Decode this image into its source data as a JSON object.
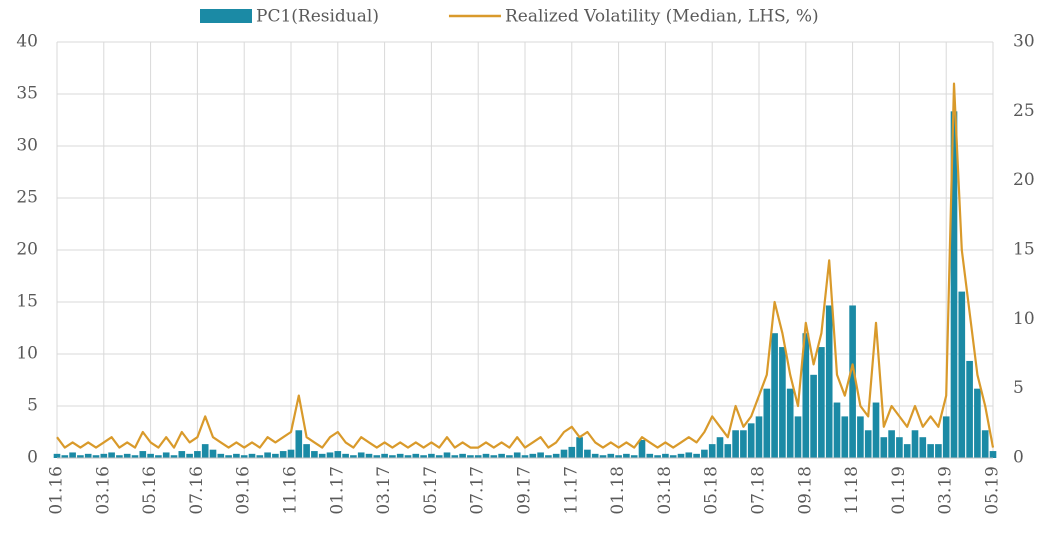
{
  "chart_data": {
    "type": "bar-line",
    "categories": [
      "01.16",
      null,
      null,
      null,
      null,
      null,
      "03.16",
      null,
      null,
      null,
      null,
      null,
      "05.16",
      null,
      null,
      null,
      null,
      null,
      "07.16",
      null,
      null,
      null,
      null,
      null,
      "09.16",
      null,
      null,
      null,
      null,
      null,
      "11.16",
      null,
      null,
      null,
      null,
      null,
      "01.17",
      null,
      null,
      null,
      null,
      null,
      "03.17",
      null,
      null,
      null,
      null,
      null,
      "05.17",
      null,
      null,
      null,
      null,
      null,
      "07.17",
      null,
      null,
      null,
      null,
      null,
      "09.17",
      null,
      null,
      null,
      null,
      null,
      "11.17",
      null,
      null,
      null,
      null,
      null,
      "01.18",
      null,
      null,
      null,
      null,
      null,
      "03.18",
      null,
      null,
      null,
      null,
      null,
      "05.18",
      null,
      null,
      null,
      null,
      null,
      "07.18",
      null,
      null,
      null,
      null,
      null,
      "09.18",
      null,
      null,
      null,
      null,
      null,
      "11.18",
      null,
      null,
      null,
      null,
      null,
      "01.19",
      null,
      null,
      null,
      null,
      null,
      "03.19",
      null,
      null,
      null,
      null,
      null,
      "05.19"
    ],
    "series": [
      {
        "name": "PC1(Residual)",
        "color": "#1b8aa5",
        "kind": "bar",
        "axis": "y2",
        "values": [
          0.3,
          0.2,
          0.4,
          0.2,
          0.3,
          0.2,
          0.3,
          0.4,
          0.2,
          0.3,
          0.2,
          0.5,
          0.3,
          0.2,
          0.4,
          0.2,
          0.5,
          0.3,
          0.5,
          1,
          0.6,
          0.3,
          0.2,
          0.3,
          0.2,
          0.3,
          0.2,
          0.4,
          0.3,
          0.5,
          0.6,
          2,
          1,
          0.5,
          0.3,
          0.4,
          0.5,
          0.3,
          0.2,
          0.4,
          0.3,
          0.2,
          0.3,
          0.2,
          0.3,
          0.2,
          0.3,
          0.2,
          0.3,
          0.2,
          0.4,
          0.2,
          0.3,
          0.2,
          0.2,
          0.3,
          0.2,
          0.3,
          0.2,
          0.4,
          0.2,
          0.3,
          0.4,
          0.2,
          0.3,
          0.6,
          0.8,
          1.5,
          0.6,
          0.3,
          0.2,
          0.3,
          0.2,
          0.3,
          0.2,
          1.3,
          0.3,
          0.2,
          0.3,
          0.2,
          0.3,
          0.4,
          0.3,
          0.6,
          1,
          1.5,
          1,
          2,
          2,
          2.5,
          3,
          5,
          9,
          8,
          5,
          3,
          9,
          6,
          8,
          11,
          4,
          3,
          11,
          3,
          2,
          4,
          1.5,
          2,
          1.5,
          1,
          2,
          1.5,
          1,
          1,
          3,
          25,
          12,
          7,
          5,
          2,
          0.5
        ]
      },
      {
        "name": "Realized Volatility (Median, LHS, %)",
        "color": "#d99a2b",
        "kind": "line",
        "values": [
          2,
          1,
          1.5,
          1,
          1.5,
          1,
          1.5,
          2,
          1,
          1.5,
          1,
          2.5,
          1.5,
          1,
          2,
          1,
          2.5,
          1.5,
          2,
          4,
          2,
          1.5,
          1,
          1.5,
          1,
          1.5,
          1,
          2,
          1.5,
          2,
          2.5,
          6,
          2,
          1.5,
          1,
          2,
          2.5,
          1.5,
          1,
          2,
          1.5,
          1,
          1.5,
          1,
          1.5,
          1,
          1.5,
          1,
          1.5,
          1,
          2,
          1,
          1.5,
          1,
          1,
          1.5,
          1,
          1.5,
          1,
          2,
          1,
          1.5,
          2,
          1,
          1.5,
          2.5,
          3,
          2,
          2.5,
          1.5,
          1,
          1.5,
          1,
          1.5,
          1,
          2,
          1.5,
          1,
          1.5,
          1,
          1.5,
          2,
          1.5,
          2.5,
          4,
          3,
          2,
          5,
          3,
          4,
          6,
          8,
          15,
          12,
          8,
          5,
          13,
          9,
          12,
          19,
          8,
          6,
          9,
          5,
          4,
          13,
          3,
          5,
          4,
          3,
          5,
          3,
          4,
          3,
          6,
          36,
          20,
          14,
          8,
          5,
          1
        ]
      }
    ],
    "ylim": [
      0,
      40
    ],
    "yticks": [
      0,
      5,
      10,
      15,
      20,
      25,
      30,
      35,
      40
    ],
    "y2lim": [
      0,
      30
    ],
    "y2ticks": [
      0,
      5,
      10,
      15,
      20,
      25,
      30
    ],
    "grid": true,
    "legend": "top"
  }
}
